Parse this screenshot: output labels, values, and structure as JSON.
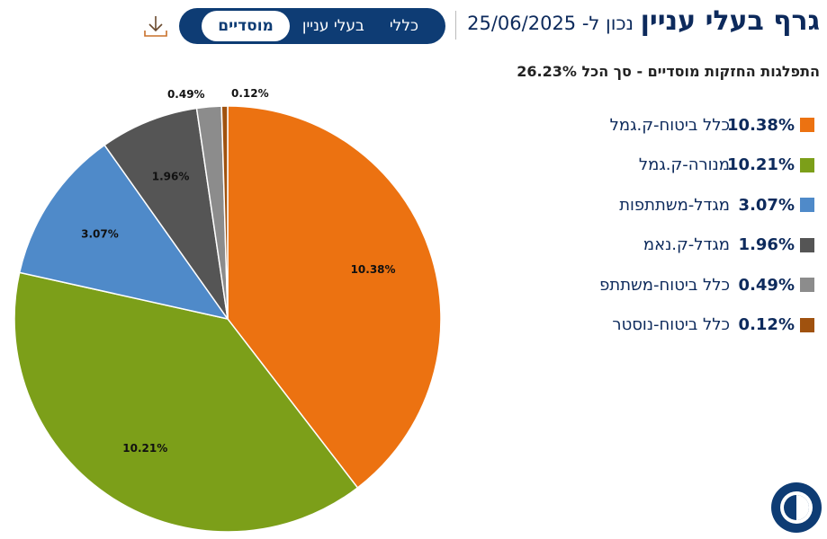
{
  "header": {
    "title": "גרף בעלי עניין",
    "date": "נכון ל- 25/06/2025",
    "tabs": [
      {
        "label": "כללי"
      },
      {
        "label": "בעלי עניין"
      },
      {
        "label": "מוסדיים",
        "active": true
      }
    ],
    "download_icon": "download-icon"
  },
  "accessibility_icon": "accessibility-contrast-icon",
  "chart_data": {
    "type": "pie",
    "title": "התפלגות החזקות מוסדיים - סך הכל 26.23%",
    "total": 26.23,
    "slices": [
      {
        "name": "כלל ביטוח-ק.גמל",
        "value": 10.38,
        "label": "10.38%",
        "color": "#ec7211"
      },
      {
        "name": "מנורה-ק.גמל",
        "value": 10.21,
        "label": "10.21%",
        "color": "#7c9f19"
      },
      {
        "name": "מגדל-משתתפות",
        "value": 3.07,
        "label": "3.07%",
        "color": "#4f8ac9"
      },
      {
        "name": "מגדל-ק.נאמ",
        "value": 1.96,
        "label": "1.96%",
        "color": "#555555"
      },
      {
        "name": "כלל ביטוח-משתתפ",
        "value": 0.49,
        "label": "0.49%",
        "color": "#8c8c8c"
      },
      {
        "name": "כלל ביטוח-נוסטר",
        "value": 0.12,
        "label": "0.12%",
        "color": "#a0520f"
      }
    ],
    "legend": "right"
  }
}
